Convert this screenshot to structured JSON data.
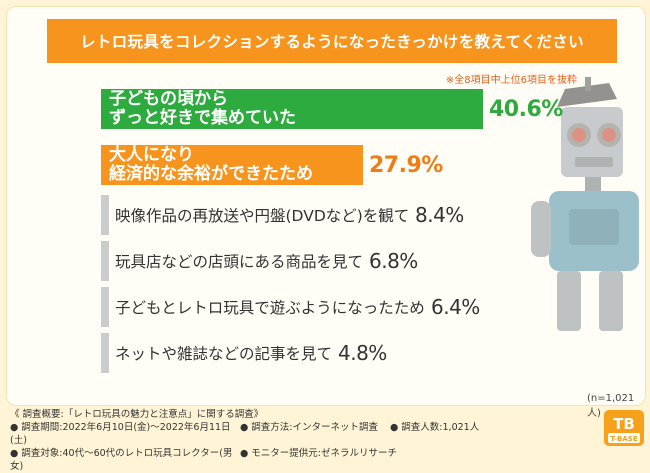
{
  "title": "レトロ玩具をコレクションするようになったきっかけを教えてください",
  "note": "※全8項目中上位6項目を抜粋",
  "sample_size": "(n=1,021人)",
  "colors": {
    "top": "#2eab3f",
    "second": "#f7941d",
    "rest": "#cccccc"
  },
  "chart_data": {
    "type": "bar",
    "orientation": "horizontal",
    "title": "レトロ玩具をコレクションするようになったきっかけを教えてください",
    "categories": [
      "子どもの頃からずっと好きで集めていた",
      "大人になり経済的な余裕ができたため",
      "映像作品の再放送や円盤(DVDなど)を観て",
      "玩具店などの店頭にある商品を見て",
      "子どもとレトロ玩具で遊ぶようになったため",
      "ネットや雑誌などの記事を見て"
    ],
    "values": [
      40.6,
      27.9,
      8.4,
      6.8,
      6.4,
      4.8
    ],
    "unit": "%",
    "value_labels": [
      "40.6%",
      "27.9%",
      "8.4%",
      "6.8%",
      "6.4%",
      "4.8%"
    ],
    "bar_lines": [
      [
        "子どもの頃から",
        "ずっと好きで集めていた"
      ],
      [
        "大人になり",
        "経済的な余裕ができたため"
      ]
    ]
  },
  "footer": {
    "overview": "《 調査概要:「レトロ玩具の魅力と注意点」に関する調査》",
    "period": "● 調査期間:2022年6月10日(金)〜2022年6月11日(土)",
    "method": "● 調査方法:インターネット調査",
    "count": "● 調査人数:1,021人",
    "target": "● 調査対象:40代〜60代のレトロ玩具コレクター(男女)",
    "provider": "● モニター提供元:ゼネラルリサーチ"
  },
  "logo": {
    "mark": "TB",
    "text": "T-BASE"
  }
}
